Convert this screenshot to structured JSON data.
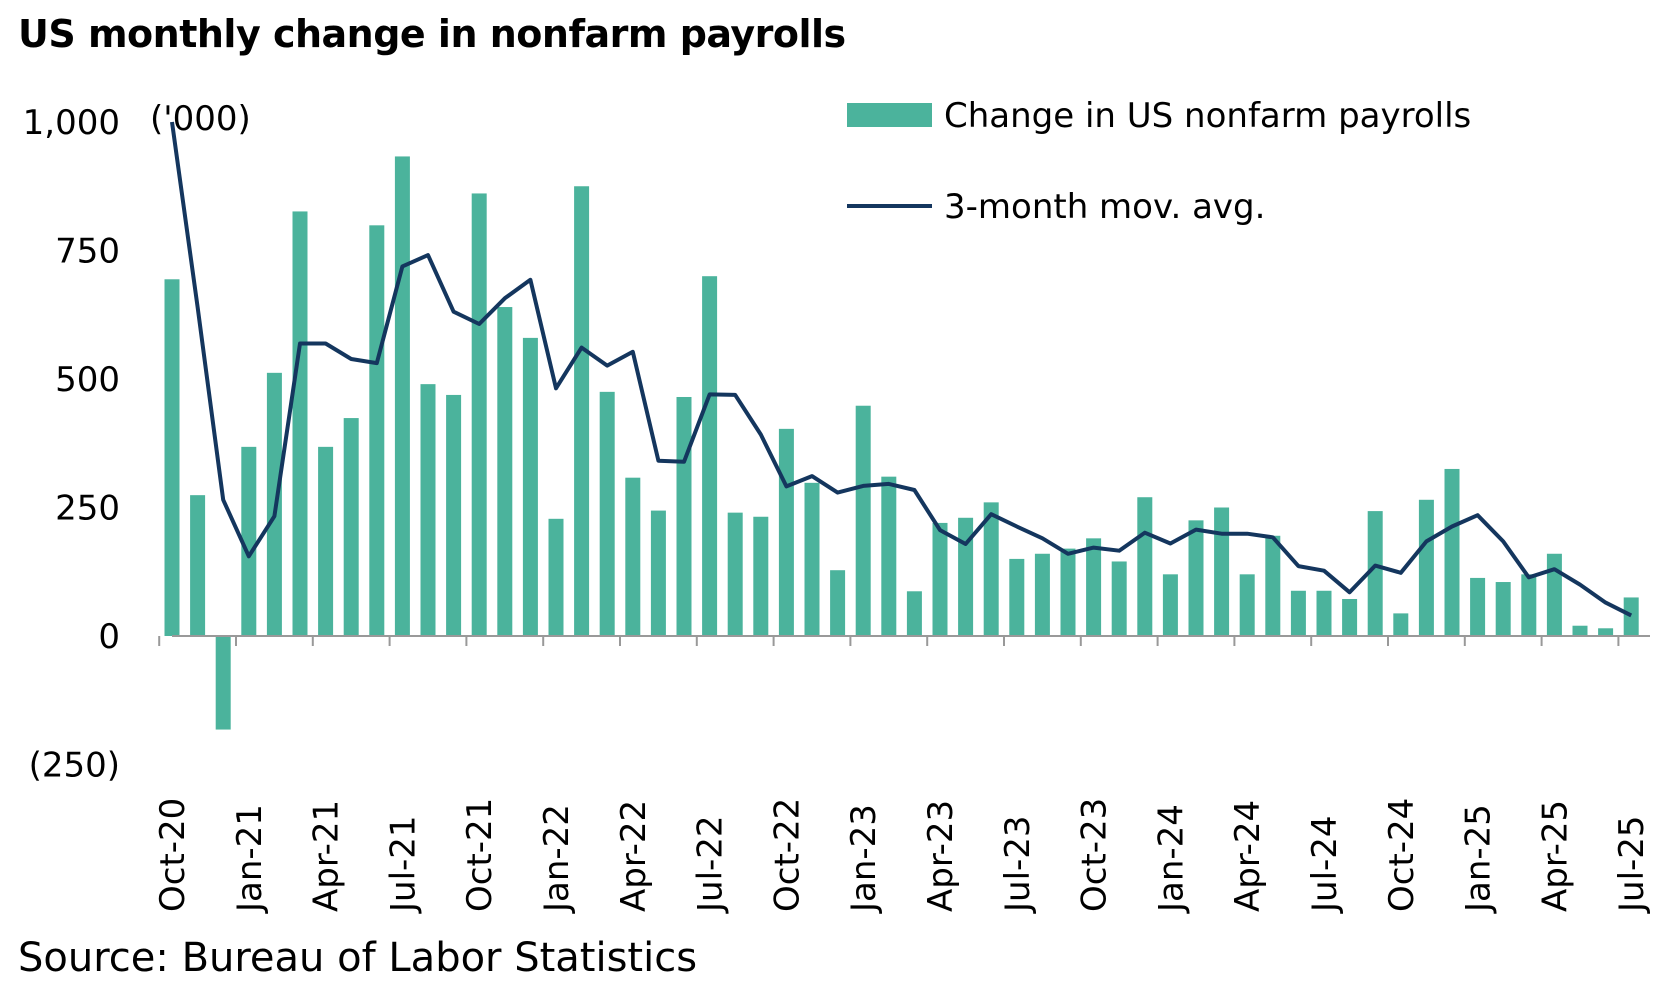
{
  "title": "US monthly change in nonfarm payrolls",
  "source": "Source: Bureau of Labor Statistics",
  "chart_data": {
    "type": "bar",
    "title": "US monthly change in nonfarm payrolls",
    "unit_label": "('000)",
    "ylim": [
      -250,
      1000
    ],
    "yticks": [
      -250,
      0,
      250,
      500,
      750,
      1000
    ],
    "ytick_labels": [
      "(250)",
      "0",
      "250",
      "500",
      "750",
      "1,000"
    ],
    "x_tick_labels": [
      "Oct-20",
      "Jan-21",
      "Apr-21",
      "Jul-21",
      "Oct-21",
      "Jan-22",
      "Apr-22",
      "Jul-22",
      "Oct-22",
      "Jan-23",
      "Apr-23",
      "Jul-23",
      "Oct-23",
      "Jan-24",
      "Apr-24",
      "Jul-24",
      "Oct-24",
      "Jan-25",
      "Apr-25",
      "Jul-25"
    ],
    "categories": [
      "Oct-20",
      "Nov-20",
      "Dec-20",
      "Jan-21",
      "Feb-21",
      "Mar-21",
      "Apr-21",
      "May-21",
      "Jun-21",
      "Jul-21",
      "Aug-21",
      "Sep-21",
      "Oct-21",
      "Nov-21",
      "Dec-21",
      "Jan-22",
      "Feb-22",
      "Mar-22",
      "Apr-22",
      "May-22",
      "Jun-22",
      "Jul-22",
      "Aug-22",
      "Sep-22",
      "Oct-22",
      "Nov-22",
      "Dec-22",
      "Jan-23",
      "Feb-23",
      "Mar-23",
      "Apr-23",
      "May-23",
      "Jun-23",
      "Jul-23",
      "Aug-23",
      "Sep-23",
      "Oct-23",
      "Nov-23",
      "Dec-23",
      "Jan-24",
      "Feb-24",
      "Mar-24",
      "Apr-24",
      "May-24",
      "Jun-24",
      "Jul-24",
      "Aug-24",
      "Sep-24",
      "Oct-24",
      "Nov-24",
      "Dec-24",
      "Jan-25",
      "Feb-25",
      "Mar-25",
      "Apr-25",
      "May-25",
      "Jun-25",
      "Jul-25"
    ],
    "series": [
      {
        "name": "Change in US nonfarm payrolls",
        "type": "bar",
        "color": "#4bb39c",
        "values": [
          694,
          274,
          -182,
          368,
          512,
          826,
          368,
          424,
          799,
          933,
          490,
          469,
          861,
          640,
          580,
          228,
          875,
          475,
          308,
          244,
          465,
          700,
          240,
          232,
          403,
          298,
          128,
          448,
          310,
          87,
          220,
          230,
          260,
          150,
          160,
          170,
          190,
          145,
          270,
          120,
          225,
          250,
          120,
          195,
          88,
          88,
          72,
          243,
          44,
          265,
          325,
          113,
          105,
          120,
          160,
          20,
          15,
          75
        ]
      },
      {
        "name": "3-month mov. avg.",
        "type": "line",
        "color": "#14365e",
        "values": [
          1000,
          640,
          265,
          155,
          233,
          569,
          569,
          539,
          531,
          719,
          741,
          631,
          607,
          657,
          693,
          482,
          561,
          526,
          553,
          341,
          339,
          470,
          469,
          392,
          291,
          311,
          279,
          292,
          296,
          284,
          206,
          179,
          237,
          213,
          190,
          160,
          172,
          166,
          201,
          180,
          207,
          199,
          199,
          192,
          136,
          127,
          85,
          137,
          123,
          184,
          213,
          235,
          184,
          114,
          130,
          100,
          65,
          40
        ]
      }
    ],
    "legend": "top-right",
    "grid": false
  }
}
